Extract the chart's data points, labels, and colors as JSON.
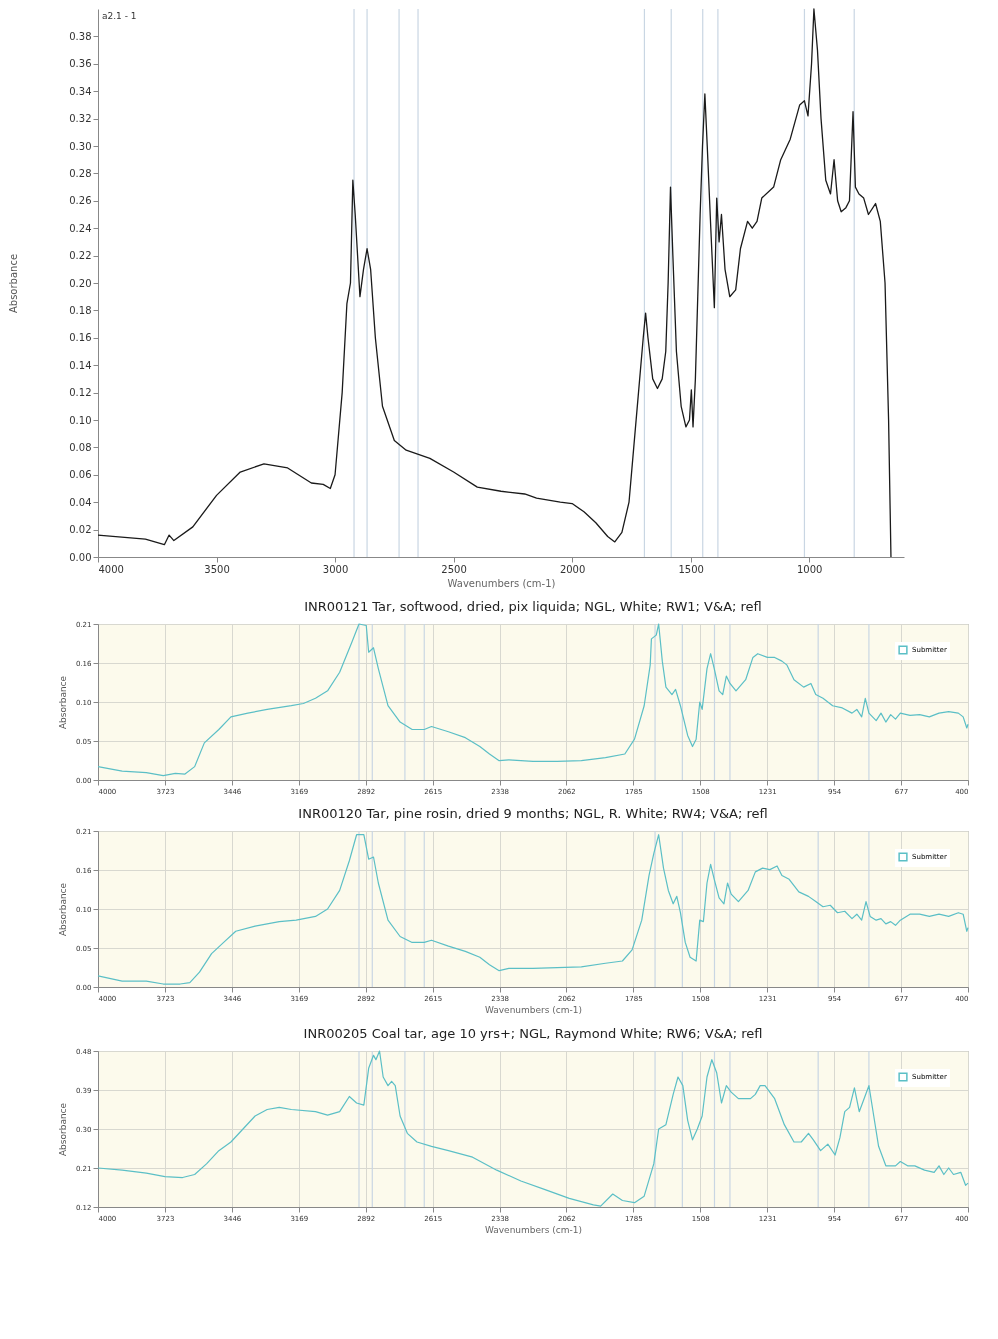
{
  "chart_data": [
    {
      "type": "line",
      "annotations": [
        "a2.1 - 1"
      ],
      "xlabel": "Wavenumbers (cm-1)",
      "ylabel": "Absorbance",
      "grid": false,
      "xlim": [
        4000,
        600
      ],
      "xticks": [
        4000,
        3500,
        3000,
        2500,
        2000,
        1500,
        1000
      ],
      "ylim": [
        0,
        0.4
      ],
      "yticks": [
        {
          "value": 0,
          "label": "0.00"
        },
        {
          "value": 0.02,
          "label": "0.02"
        },
        {
          "value": 0.04,
          "label": "0.04"
        },
        {
          "value": 0.06,
          "label": "0.06"
        },
        {
          "value": 0.08,
          "label": "0.08"
        },
        {
          "value": 0.1,
          "label": "0.10"
        },
        {
          "value": 0.12,
          "label": "0.12"
        },
        {
          "value": 0.14,
          "label": "0.14"
        },
        {
          "value": 0.16,
          "label": "0.16"
        },
        {
          "value": 0.18,
          "label": "0.18"
        },
        {
          "value": 0.2,
          "label": "0.20"
        },
        {
          "value": 0.22,
          "label": "0.22"
        },
        {
          "value": 0.24,
          "label": "0.24"
        },
        {
          "value": 0.26,
          "label": "0.26"
        },
        {
          "value": 0.28,
          "label": "0.28"
        },
        {
          "value": 0.3,
          "label": "0.30"
        },
        {
          "value": 0.32,
          "label": "0.32"
        },
        {
          "value": 0.34,
          "label": "0.34"
        },
        {
          "value": 0.36,
          "label": "0.36"
        },
        {
          "value": 0.38,
          "label": "0.38"
        }
      ],
      "x": [
        4000,
        3800,
        3720,
        3700,
        3680,
        3600,
        3500,
        3400,
        3300,
        3200,
        3100,
        3050,
        3020,
        3000,
        2970,
        2950,
        2935,
        2925,
        2915,
        2895,
        2880,
        2865,
        2850,
        2830,
        2800,
        2750,
        2700,
        2600,
        2500,
        2400,
        2300,
        2200,
        2150,
        2050,
        2000,
        1950,
        1900,
        1850,
        1820,
        1790,
        1760,
        1740,
        1720,
        1700,
        1690,
        1680,
        1660,
        1640,
        1620,
        1605,
        1595,
        1585,
        1575,
        1560,
        1540,
        1520,
        1505,
        1497,
        1490,
        1480,
        1460,
        1450,
        1440,
        1430,
        1415,
        1400,
        1390,
        1380,
        1370,
        1355,
        1335,
        1310,
        1290,
        1260,
        1240,
        1220,
        1200,
        1150,
        1120,
        1080,
        1040,
        1020,
        1005,
        990,
        980,
        965,
        950,
        930,
        910,
        895,
        880,
        865,
        845,
        830,
        815,
        805,
        790,
        770,
        750,
        720,
        700,
        680,
        665,
        655
      ],
      "series": [
        {
          "color": "#1a1a1a",
          "values": [
            0.016,
            0.013,
            0.009,
            0.016,
            0.012,
            0.022,
            0.045,
            0.062,
            0.068,
            0.065,
            0.054,
            0.053,
            0.05,
            0.06,
            0.12,
            0.185,
            0.2,
            0.275,
            0.25,
            0.19,
            0.21,
            0.225,
            0.21,
            0.16,
            0.11,
            0.085,
            0.078,
            0.072,
            0.062,
            0.051,
            0.048,
            0.046,
            0.043,
            0.04,
            0.039,
            0.033,
            0.025,
            0.015,
            0.011,
            0.018,
            0.04,
            0.08,
            0.12,
            0.16,
            0.178,
            0.16,
            0.13,
            0.123,
            0.13,
            0.15,
            0.2,
            0.27,
            0.22,
            0.15,
            0.11,
            0.095,
            0.1,
            0.122,
            0.095,
            0.13,
            0.25,
            0.3,
            0.338,
            0.3,
            0.24,
            0.182,
            0.262,
            0.23,
            0.25,
            0.21,
            0.19,
            0.195,
            0.225,
            0.245,
            0.24,
            0.245,
            0.262,
            0.27,
            0.29,
            0.305,
            0.33,
            0.333,
            0.322,
            0.36,
            0.4,
            0.37,
            0.32,
            0.275,
            0.265,
            0.29,
            0.26,
            0.252,
            0.255,
            0.26,
            0.325,
            0.27,
            0.265,
            0.262,
            0.25,
            0.258,
            0.245,
            0.2,
            0.1,
            0.0
          ]
        }
      ],
      "ref_lines": [
        {
          "axis": "x",
          "value": 2920,
          "color": "#c9d6e3"
        },
        {
          "axis": "x",
          "value": 2865,
          "color": "#c9d6e3"
        },
        {
          "axis": "x",
          "value": 2730,
          "color": "#c9d6e3"
        },
        {
          "axis": "x",
          "value": 2650,
          "color": "#c9d6e3"
        },
        {
          "axis": "x",
          "value": 1695,
          "color": "#c9d6e3"
        },
        {
          "axis": "x",
          "value": 1582,
          "color": "#c9d6e3"
        },
        {
          "axis": "x",
          "value": 1449,
          "color": "#c9d6e3"
        },
        {
          "axis": "x",
          "value": 1385,
          "color": "#c9d6e3"
        },
        {
          "axis": "x",
          "value": 1020,
          "color": "#c9d6e3"
        },
        {
          "axis": "x",
          "value": 810,
          "color": "#c9d6e3"
        }
      ]
    },
    {
      "type": "line",
      "title": "INR00121 Tar, softwood, dried, pix liquida; NGL, White; RW1; V&A; refl",
      "ylabel": "Absorbance",
      "grid": true,
      "legend": "top right",
      "xlim": [
        4000,
        400
      ],
      "xticks": [
        4000,
        3723,
        3446,
        3169,
        2892,
        2615,
        2338,
        2062,
        1785,
        1508,
        1231,
        954,
        677,
        400
      ],
      "ylim": [
        0,
        0.21
      ],
      "yticks": [
        {
          "value": 0,
          "label": "0.00"
        },
        {
          "value": 0.0525,
          "label": "0.05"
        },
        {
          "value": 0.105,
          "label": "0.10"
        },
        {
          "value": 0.1575,
          "label": "0.16"
        },
        {
          "value": 0.21,
          "label": "0.21"
        }
      ],
      "x": [
        4000,
        3900,
        3800,
        3730,
        3680,
        3640,
        3600,
        3560,
        3500,
        3450,
        3380,
        3300,
        3200,
        3150,
        3100,
        3050,
        3000,
        2950,
        2920,
        2890,
        2880,
        2860,
        2840,
        2800,
        2750,
        2700,
        2650,
        2620,
        2550,
        2480,
        2420,
        2380,
        2340,
        2300,
        2200,
        2100,
        2000,
        1900,
        1820,
        1780,
        1740,
        1715,
        1710,
        1690,
        1680,
        1665,
        1650,
        1625,
        1610,
        1590,
        1560,
        1540,
        1525,
        1510,
        1500,
        1480,
        1465,
        1450,
        1430,
        1415,
        1400,
        1385,
        1360,
        1320,
        1290,
        1270,
        1230,
        1200,
        1170,
        1150,
        1120,
        1080,
        1050,
        1030,
        1000,
        960,
        920,
        880,
        860,
        840,
        825,
        810,
        780,
        760,
        740,
        720,
        700,
        680,
        640,
        600,
        560,
        520,
        480,
        440,
        420,
        405,
        400
      ],
      "series": [
        {
          "name": "Submitter",
          "color": "#5bbfc6",
          "values": [
            0.018,
            0.012,
            0.01,
            0.006,
            0.009,
            0.008,
            0.018,
            0.05,
            0.068,
            0.085,
            0.09,
            0.095,
            0.1,
            0.103,
            0.11,
            0.12,
            0.145,
            0.185,
            0.21,
            0.208,
            0.172,
            0.178,
            0.15,
            0.1,
            0.078,
            0.068,
            0.068,
            0.072,
            0.065,
            0.057,
            0.045,
            0.035,
            0.026,
            0.027,
            0.025,
            0.025,
            0.026,
            0.03,
            0.035,
            0.055,
            0.1,
            0.155,
            0.19,
            0.195,
            0.21,
            0.16,
            0.125,
            0.115,
            0.122,
            0.1,
            0.06,
            0.045,
            0.055,
            0.105,
            0.095,
            0.15,
            0.17,
            0.15,
            0.12,
            0.115,
            0.14,
            0.13,
            0.12,
            0.135,
            0.165,
            0.17,
            0.165,
            0.165,
            0.16,
            0.155,
            0.135,
            0.125,
            0.13,
            0.115,
            0.11,
            0.1,
            0.097,
            0.09,
            0.095,
            0.085,
            0.11,
            0.09,
            0.08,
            0.09,
            0.078,
            0.088,
            0.082,
            0.09,
            0.087,
            0.088,
            0.085,
            0.09,
            0.092,
            0.09,
            0.085,
            0.07,
            0.075
          ]
        }
      ],
      "ref_lines": [
        {
          "axis": "x",
          "value": 2920,
          "color": "#c9d6e3"
        },
        {
          "axis": "x",
          "value": 2865,
          "color": "#c9d6e3"
        },
        {
          "axis": "x",
          "value": 2730,
          "color": "#c9d6e3"
        },
        {
          "axis": "x",
          "value": 2650,
          "color": "#c9d6e3"
        },
        {
          "axis": "x",
          "value": 1695,
          "color": "#c9d6e3"
        },
        {
          "axis": "x",
          "value": 1582,
          "color": "#c9d6e3"
        },
        {
          "axis": "x",
          "value": 1449,
          "color": "#c9d6e3"
        },
        {
          "axis": "x",
          "value": 1385,
          "color": "#c9d6e3"
        },
        {
          "axis": "x",
          "value": 1020,
          "color": "#c9d6e3"
        },
        {
          "axis": "x",
          "value": 810,
          "color": "#c9d6e3"
        }
      ]
    },
    {
      "type": "line",
      "title": "INR00120 Tar, pine rosin, dried 9 months; NGL, R. White; RW4; V&A; refl",
      "xlabel": "Wavenumbers (cm-1)",
      "ylabel": "Absorbance",
      "grid": true,
      "legend": "top right",
      "xlim": [
        4000,
        400
      ],
      "xticks": [
        4000,
        3723,
        3446,
        3169,
        2892,
        2615,
        2338,
        2062,
        1785,
        1508,
        1231,
        954,
        677,
        400
      ],
      "ylim": [
        0,
        0.21
      ],
      "yticks": [
        {
          "value": 0,
          "label": "0.00"
        },
        {
          "value": 0.0525,
          "label": "0.05"
        },
        {
          "value": 0.105,
          "label": "0.10"
        },
        {
          "value": 0.1575,
          "label": "0.16"
        },
        {
          "value": 0.21,
          "label": "0.21"
        }
      ],
      "x": [
        4000,
        3900,
        3800,
        3730,
        3660,
        3620,
        3580,
        3530,
        3480,
        3430,
        3350,
        3250,
        3180,
        3100,
        3050,
        3000,
        2960,
        2930,
        2900,
        2880,
        2860,
        2840,
        2800,
        2750,
        2700,
        2650,
        2620,
        2550,
        2480,
        2420,
        2380,
        2340,
        2300,
        2200,
        2100,
        2000,
        1900,
        1830,
        1790,
        1750,
        1720,
        1700,
        1680,
        1660,
        1640,
        1620,
        1605,
        1590,
        1570,
        1550,
        1525,
        1510,
        1495,
        1480,
        1465,
        1450,
        1430,
        1410,
        1395,
        1380,
        1350,
        1310,
        1280,
        1250,
        1220,
        1190,
        1170,
        1140,
        1100,
        1060,
        1030,
        1000,
        970,
        940,
        910,
        880,
        860,
        840,
        822,
        805,
        780,
        760,
        740,
        720,
        700,
        680,
        640,
        600,
        560,
        520,
        480,
        440,
        420,
        405,
        400
      ],
      "series": [
        {
          "name": "Submitter",
          "color": "#5bbfc6",
          "values": [
            0.015,
            0.008,
            0.008,
            0.004,
            0.004,
            0.006,
            0.02,
            0.045,
            0.06,
            0.075,
            0.082,
            0.088,
            0.09,
            0.095,
            0.105,
            0.13,
            0.17,
            0.205,
            0.205,
            0.172,
            0.175,
            0.14,
            0.09,
            0.068,
            0.06,
            0.06,
            0.063,
            0.055,
            0.048,
            0.04,
            0.03,
            0.022,
            0.025,
            0.025,
            0.026,
            0.027,
            0.032,
            0.035,
            0.05,
            0.09,
            0.15,
            0.18,
            0.205,
            0.16,
            0.13,
            0.112,
            0.122,
            0.1,
            0.06,
            0.04,
            0.035,
            0.09,
            0.088,
            0.14,
            0.165,
            0.145,
            0.12,
            0.112,
            0.14,
            0.125,
            0.115,
            0.13,
            0.155,
            0.16,
            0.158,
            0.163,
            0.15,
            0.145,
            0.128,
            0.122,
            0.115,
            0.108,
            0.11,
            0.1,
            0.102,
            0.092,
            0.098,
            0.09,
            0.115,
            0.095,
            0.09,
            0.092,
            0.085,
            0.088,
            0.083,
            0.09,
            0.098,
            0.098,
            0.095,
            0.098,
            0.095,
            0.1,
            0.098,
            0.075,
            0.08
          ]
        }
      ],
      "ref_lines": [
        {
          "axis": "x",
          "value": 2920,
          "color": "#c9d6e3"
        },
        {
          "axis": "x",
          "value": 2865,
          "color": "#c9d6e3"
        },
        {
          "axis": "x",
          "value": 2730,
          "color": "#c9d6e3"
        },
        {
          "axis": "x",
          "value": 2650,
          "color": "#c9d6e3"
        },
        {
          "axis": "x",
          "value": 1695,
          "color": "#c9d6e3"
        },
        {
          "axis": "x",
          "value": 1582,
          "color": "#c9d6e3"
        },
        {
          "axis": "x",
          "value": 1449,
          "color": "#c9d6e3"
        },
        {
          "axis": "x",
          "value": 1385,
          "color": "#c9d6e3"
        },
        {
          "axis": "x",
          "value": 1020,
          "color": "#c9d6e3"
        },
        {
          "axis": "x",
          "value": 810,
          "color": "#c9d6e3"
        }
      ]
    },
    {
      "type": "line",
      "title": "INR00205 Coal tar, age 10 yrs+; NGL, Raymond White; RW6; V&A; refl",
      "xlabel": "Wavenumbers (cm-1)",
      "ylabel": "Absorbance",
      "grid": true,
      "legend": "top right",
      "xlim": [
        4000,
        400
      ],
      "xticks": [
        4000,
        3723,
        3446,
        3169,
        2892,
        2615,
        2338,
        2062,
        1785,
        1508,
        1231,
        954,
        677,
        400
      ],
      "ylim": [
        0.12,
        0.48
      ],
      "yticks": [
        {
          "value": 0.12,
          "label": "0.12"
        },
        {
          "value": 0.21,
          "label": "0.21"
        },
        {
          "value": 0.3,
          "label": "0.30"
        },
        {
          "value": 0.39,
          "label": "0.39"
        },
        {
          "value": 0.48,
          "label": "0.48"
        }
      ],
      "x": [
        4000,
        3900,
        3800,
        3723,
        3650,
        3600,
        3550,
        3500,
        3450,
        3400,
        3350,
        3300,
        3250,
        3200,
        3100,
        3050,
        3000,
        2960,
        2930,
        2900,
        2880,
        2860,
        2850,
        2835,
        2820,
        2800,
        2785,
        2770,
        2750,
        2720,
        2680,
        2620,
        2550,
        2450,
        2350,
        2250,
        2150,
        2050,
        1950,
        1920,
        1870,
        1830,
        1780,
        1740,
        1700,
        1680,
        1650,
        1620,
        1600,
        1580,
        1560,
        1540,
        1520,
        1500,
        1480,
        1460,
        1440,
        1420,
        1400,
        1380,
        1350,
        1300,
        1280,
        1260,
        1240,
        1200,
        1160,
        1120,
        1090,
        1060,
        1040,
        1010,
        980,
        950,
        930,
        910,
        890,
        870,
        850,
        830,
        810,
        790,
        770,
        740,
        700,
        680,
        650,
        620,
        580,
        540,
        520,
        500,
        480,
        460,
        430,
        410,
        400
      ],
      "series": [
        {
          "name": "Submitter",
          "color": "#5bbfc6",
          "values": [
            0.21,
            0.205,
            0.198,
            0.19,
            0.188,
            0.195,
            0.22,
            0.25,
            0.27,
            0.3,
            0.33,
            0.345,
            0.35,
            0.345,
            0.34,
            0.332,
            0.34,
            0.375,
            0.36,
            0.355,
            0.44,
            0.47,
            0.46,
            0.48,
            0.42,
            0.4,
            0.41,
            0.4,
            0.33,
            0.29,
            0.27,
            0.26,
            0.25,
            0.235,
            0.205,
            0.18,
            0.16,
            0.14,
            0.125,
            0.122,
            0.15,
            0.135,
            0.13,
            0.145,
            0.22,
            0.3,
            0.31,
            0.38,
            0.42,
            0.4,
            0.32,
            0.275,
            0.3,
            0.33,
            0.42,
            0.46,
            0.43,
            0.36,
            0.4,
            0.385,
            0.37,
            0.37,
            0.38,
            0.4,
            0.4,
            0.37,
            0.31,
            0.27,
            0.27,
            0.29,
            0.275,
            0.25,
            0.265,
            0.24,
            0.28,
            0.34,
            0.35,
            0.395,
            0.34,
            0.37,
            0.4,
            0.33,
            0.26,
            0.215,
            0.215,
            0.225,
            0.215,
            0.215,
            0.205,
            0.2,
            0.215,
            0.195,
            0.21,
            0.195,
            0.2,
            0.17,
            0.175
          ]
        }
      ],
      "ref_lines": [
        {
          "axis": "x",
          "value": 2920,
          "color": "#c9d6e3"
        },
        {
          "axis": "x",
          "value": 2865,
          "color": "#c9d6e3"
        },
        {
          "axis": "x",
          "value": 2730,
          "color": "#c9d6e3"
        },
        {
          "axis": "x",
          "value": 2650,
          "color": "#c9d6e3"
        },
        {
          "axis": "x",
          "value": 1695,
          "color": "#c9d6e3"
        },
        {
          "axis": "x",
          "value": 1582,
          "color": "#c9d6e3"
        },
        {
          "axis": "x",
          "value": 1449,
          "color": "#c9d6e3"
        },
        {
          "axis": "x",
          "value": 1385,
          "color": "#c9d6e3"
        },
        {
          "axis": "x",
          "value": 1020,
          "color": "#c9d6e3"
        },
        {
          "axis": "x",
          "value": 810,
          "color": "#c9d6e3"
        }
      ]
    }
  ]
}
